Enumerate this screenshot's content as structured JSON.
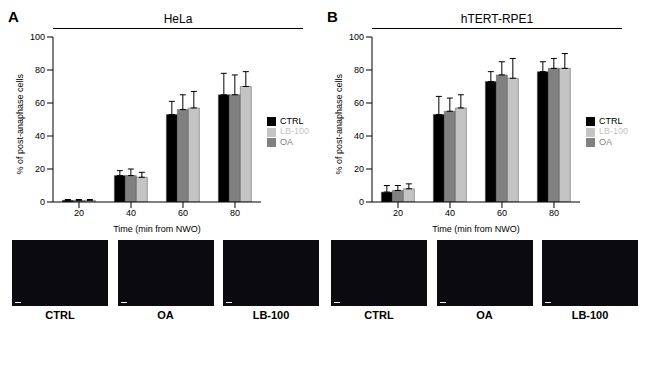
{
  "chart_data": [
    {
      "panel_label": "A",
      "type": "bar",
      "title": "HeLa",
      "x_label": "Time (min from NWO)",
      "y_label": "% of post-anaphase cells",
      "categories": [
        "20",
        "40",
        "60",
        "80"
      ],
      "series": [
        {
          "name": "CTRL",
          "color": "#000000",
          "values": [
            1,
            16,
            53,
            65
          ],
          "errors": [
            0.5,
            3,
            8,
            13
          ]
        },
        {
          "name": "OA",
          "color": "#808080",
          "values": [
            1,
            16,
            56,
            65
          ],
          "errors": [
            0.5,
            4,
            9,
            12
          ]
        },
        {
          "name": "LB-100",
          "color": "#c4c4c4",
          "values": [
            1,
            15,
            57,
            70
          ],
          "errors": [
            0.5,
            3,
            10,
            9
          ]
        }
      ],
      "ylim": [
        0,
        100
      ],
      "yticks": [
        0,
        20,
        40,
        60,
        80,
        100
      ],
      "grid": false,
      "legend": "right",
      "image_labels": [
        "CTRL",
        "OA",
        "LB-100"
      ]
    },
    {
      "panel_label": "B",
      "type": "bar",
      "title": "hTERT-RPE1",
      "x_label": "Time (min from NWO)",
      "y_label": "% of post-anaphase cells",
      "categories": [
        "20",
        "40",
        "60",
        "80"
      ],
      "series": [
        {
          "name": "CTRL",
          "color": "#000000",
          "values": [
            6,
            53,
            73,
            79
          ],
          "errors": [
            4,
            11,
            6,
            6
          ]
        },
        {
          "name": "OA",
          "color": "#808080",
          "values": [
            7,
            55,
            77,
            81
          ],
          "errors": [
            3,
            8,
            8,
            6
          ]
        },
        {
          "name": "LB-100",
          "color": "#c4c4c4",
          "values": [
            8,
            57,
            75,
            81
          ],
          "errors": [
            3,
            8,
            12,
            9
          ]
        }
      ],
      "ylim": [
        0,
        100
      ],
      "yticks": [
        0,
        20,
        40,
        60,
        80,
        100
      ],
      "grid": false,
      "legend": "right",
      "image_labels": [
        "CTRL",
        "OA",
        "LB-100"
      ]
    }
  ]
}
